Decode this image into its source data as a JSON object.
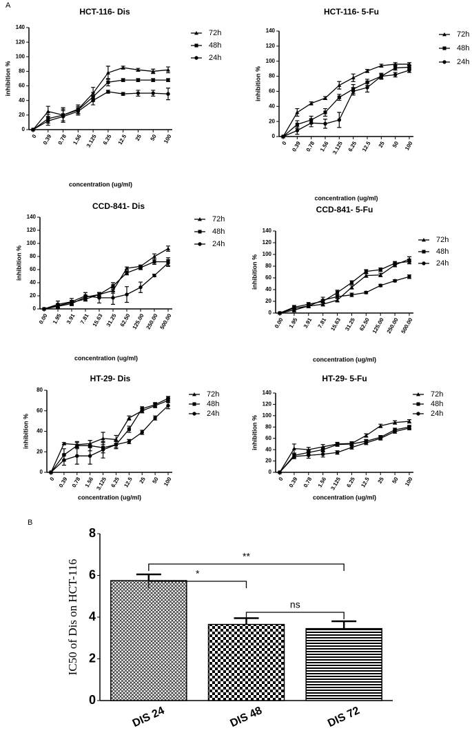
{
  "panels": [
    "A",
    "B"
  ],
  "chart_data": [
    {
      "type": "line",
      "title": "HCT-116- Dis",
      "x_label": "concentration (ug/ml)",
      "y_label": "inhibition %",
      "categories": [
        "0",
        "0.39",
        "0.78",
        "1.56",
        "3.125",
        "6.25",
        "12.5",
        "25",
        "50",
        "100"
      ],
      "ylim": [
        0,
        140
      ],
      "yticks": [
        0,
        20,
        40,
        60,
        80,
        100,
        120,
        140
      ],
      "series": [
        {
          "name": "72h",
          "color": "#000000",
          "marker": "triangle",
          "values": [
            0,
            25,
            20,
            28,
            50,
            78,
            85,
            82,
            80,
            82
          ],
          "errors": [
            0,
            7,
            8,
            6,
            8,
            9,
            2,
            2,
            3,
            4
          ]
        },
        {
          "name": "48h",
          "color": "#000000",
          "marker": "square",
          "values": [
            0,
            15,
            20,
            27,
            45,
            65,
            68,
            68,
            68,
            68
          ],
          "errors": [
            0,
            6,
            10,
            5,
            6,
            5,
            2,
            2,
            2,
            2
          ]
        },
        {
          "name": "24h",
          "color": "#000000",
          "marker": "circle",
          "values": [
            0,
            12,
            18,
            25,
            40,
            52,
            49,
            50,
            50,
            49
          ],
          "errors": [
            0,
            6,
            8,
            5,
            6,
            2,
            2,
            4,
            4,
            8
          ]
        }
      ]
    },
    {
      "type": "line",
      "title": "HCT-116- 5-Fu",
      "x_label": "concentration (ug/ml)",
      "y_label": "inhibition %",
      "categories": [
        "0",
        "0.39",
        "0.78",
        "1.56",
        "3.125",
        "6.25",
        "12.5",
        "25",
        "50",
        "100"
      ],
      "ylim": [
        0,
        140
      ],
      "yticks": [
        0,
        20,
        40,
        60,
        80,
        100,
        120,
        140
      ],
      "series": [
        {
          "name": "72h",
          "color": "#000000",
          "marker": "triangle",
          "values": [
            0,
            32,
            44,
            51,
            68,
            78,
            87,
            94,
            96,
            96
          ],
          "errors": [
            0,
            5,
            2,
            2,
            5,
            5,
            2,
            2,
            2,
            2
          ]
        },
        {
          "name": "48h",
          "color": "#000000",
          "marker": "square",
          "values": [
            0,
            16,
            22,
            32,
            52,
            63,
            72,
            80,
            91,
            92
          ],
          "errors": [
            0,
            5,
            5,
            5,
            4,
            6,
            4,
            4,
            3,
            3
          ]
        },
        {
          "name": "24h",
          "color": "#000000",
          "marker": "circle",
          "values": [
            0,
            8,
            18,
            17,
            22,
            60,
            65,
            80,
            82,
            88
          ],
          "errors": [
            0,
            5,
            5,
            6,
            10,
            5,
            6,
            3,
            3,
            3
          ]
        }
      ]
    },
    {
      "type": "line",
      "title": "CCD-841- Dis",
      "x_label": "concentration (ug/ml)",
      "y_label": "inhibition %",
      "categories": [
        "0.00",
        "1.95",
        "3.91",
        "7.81",
        "15.63",
        "31.25",
        "62.50",
        "125.00",
        "250.00",
        "500.00"
      ],
      "ylim": [
        0,
        140
      ],
      "yticks": [
        0,
        20,
        40,
        60,
        80,
        100,
        120,
        140
      ],
      "series": [
        {
          "name": "72h",
          "color": "#000000",
          "marker": "triangle",
          "values": [
            0,
            5,
            10,
            15,
            22,
            28,
            62,
            65,
            80,
            92
          ],
          "errors": [
            0,
            3,
            3,
            3,
            3,
            4,
            2,
            2,
            4,
            4
          ]
        },
        {
          "name": "48h",
          "color": "#000000",
          "marker": "square",
          "values": [
            0,
            4,
            8,
            18,
            22,
            35,
            55,
            63,
            72,
            72
          ],
          "errors": [
            0,
            3,
            3,
            3,
            3,
            5,
            3,
            3,
            4,
            6
          ]
        },
        {
          "name": "24h",
          "color": "#000000",
          "marker": "circle",
          "values": [
            0,
            7,
            11,
            20,
            17,
            17,
            22,
            33,
            51,
            70
          ],
          "errors": [
            0,
            5,
            5,
            5,
            8,
            10,
            12,
            8,
            2,
            5
          ]
        }
      ]
    },
    {
      "type": "line",
      "title": "CCD-841- 5-Fu",
      "x_label": "concentration (ug/ml)",
      "y_label": "inhibition %",
      "categories": [
        "0.00",
        "1.95",
        "3.91",
        "7.81",
        "15.63",
        "31.25",
        "62.50",
        "125.00",
        "250.00",
        "500.00"
      ],
      "ylim": [
        0,
        140
      ],
      "yticks": [
        0,
        20,
        40,
        60,
        80,
        100,
        120,
        140
      ],
      "series": [
        {
          "name": "72h",
          "color": "#000000",
          "marker": "triangle",
          "values": [
            0,
            5,
            12,
            15,
            22,
            44,
            64,
            65,
            82,
            92
          ],
          "errors": [
            0,
            3,
            3,
            3,
            3,
            3,
            3,
            3,
            3,
            4
          ]
        },
        {
          "name": "48h",
          "color": "#000000",
          "marker": "square",
          "values": [
            0,
            10,
            15,
            20,
            35,
            52,
            71,
            74,
            85,
            88
          ],
          "errors": [
            0,
            3,
            3,
            3,
            4,
            3,
            3,
            3,
            3,
            4
          ]
        },
        {
          "name": "24h",
          "color": "#000000",
          "marker": "circle",
          "values": [
            0,
            8,
            12,
            22,
            28,
            31,
            35,
            47,
            55,
            62
          ],
          "errors": [
            0,
            3,
            3,
            5,
            3,
            3,
            2,
            2,
            2,
            3
          ]
        }
      ]
    },
    {
      "type": "line",
      "title": "HT-29- Dis",
      "x_label": "concentration (ug/ml)",
      "y_label": "inhibition %",
      "categories": [
        "0",
        "0.39",
        "0.78",
        "1.56",
        "3.125",
        "6.25",
        "12.5",
        "25",
        "50",
        "100"
      ],
      "ylim": [
        0,
        80
      ],
      "yticks": [
        0,
        20,
        40,
        60,
        80
      ],
      "series": [
        {
          "name": "72h",
          "color": "#000000",
          "marker": "triangle",
          "values": [
            0,
            28,
            27,
            28,
            33,
            32,
            53,
            60,
            65,
            70
          ],
          "errors": [
            0,
            1,
            3,
            3,
            6,
            4,
            2,
            2,
            2,
            2
          ]
        },
        {
          "name": "48h",
          "color": "#000000",
          "marker": "square",
          "values": [
            0,
            17,
            26,
            26,
            24,
            27,
            42,
            62,
            66,
            72
          ],
          "errors": [
            0,
            6,
            3,
            5,
            5,
            3,
            3,
            2,
            2,
            2
          ]
        },
        {
          "name": "24h",
          "color": "#000000",
          "marker": "circle",
          "values": [
            0,
            12,
            16,
            16,
            22,
            27,
            30,
            39,
            53,
            65
          ],
          "errors": [
            0,
            5,
            8,
            8,
            8,
            4,
            2,
            2,
            2,
            3
          ]
        }
      ]
    },
    {
      "type": "line",
      "title": "HT-29- 5-Fu",
      "x_label": "concentration (ug/ml)",
      "y_label": "inhibition %",
      "categories": [
        "0",
        "0.39",
        "0.78",
        "1.56",
        "3.125",
        "6.25",
        "12.5",
        "25",
        "50",
        "100"
      ],
      "ylim": [
        0,
        140
      ],
      "yticks": [
        0,
        20,
        40,
        60,
        80,
        100,
        120,
        140
      ],
      "series": [
        {
          "name": "72h",
          "color": "#000000",
          "marker": "triangle",
          "values": [
            0,
            42,
            40,
            45,
            50,
            51,
            65,
            82,
            88,
            90
          ],
          "errors": [
            0,
            8,
            4,
            4,
            3,
            3,
            3,
            3,
            3,
            3
          ]
        },
        {
          "name": "48h",
          "color": "#000000",
          "marker": "square",
          "values": [
            0,
            30,
            35,
            40,
            49,
            50,
            55,
            62,
            75,
            80
          ],
          "errors": [
            0,
            4,
            4,
            4,
            3,
            3,
            3,
            3,
            3,
            3
          ]
        },
        {
          "name": "24h",
          "color": "#000000",
          "marker": "circle",
          "values": [
            0,
            28,
            30,
            32,
            35,
            44,
            52,
            60,
            72,
            78
          ],
          "errors": [
            0,
            4,
            5,
            5,
            3,
            3,
            3,
            3,
            3,
            3
          ]
        }
      ]
    },
    {
      "type": "bar",
      "y_label": "IC50 of Dis on HCT-116",
      "categories": [
        "DIS 24",
        "DIS 48",
        "DIS 72"
      ],
      "values": [
        5.75,
        3.65,
        3.45
      ],
      "errors": [
        0.3,
        0.3,
        0.35
      ],
      "patterns": [
        "crosshatch",
        "checker",
        "stripes"
      ],
      "color": "#000000",
      "ylim": [
        0,
        8
      ],
      "yticks": [
        0,
        2,
        4,
        6,
        8
      ],
      "annotations": [
        {
          "text": "**",
          "from": 0,
          "to": 2
        },
        {
          "text": "*",
          "from": 0,
          "to": 1
        },
        {
          "text": "ns",
          "from": 1,
          "to": 2
        }
      ]
    }
  ]
}
